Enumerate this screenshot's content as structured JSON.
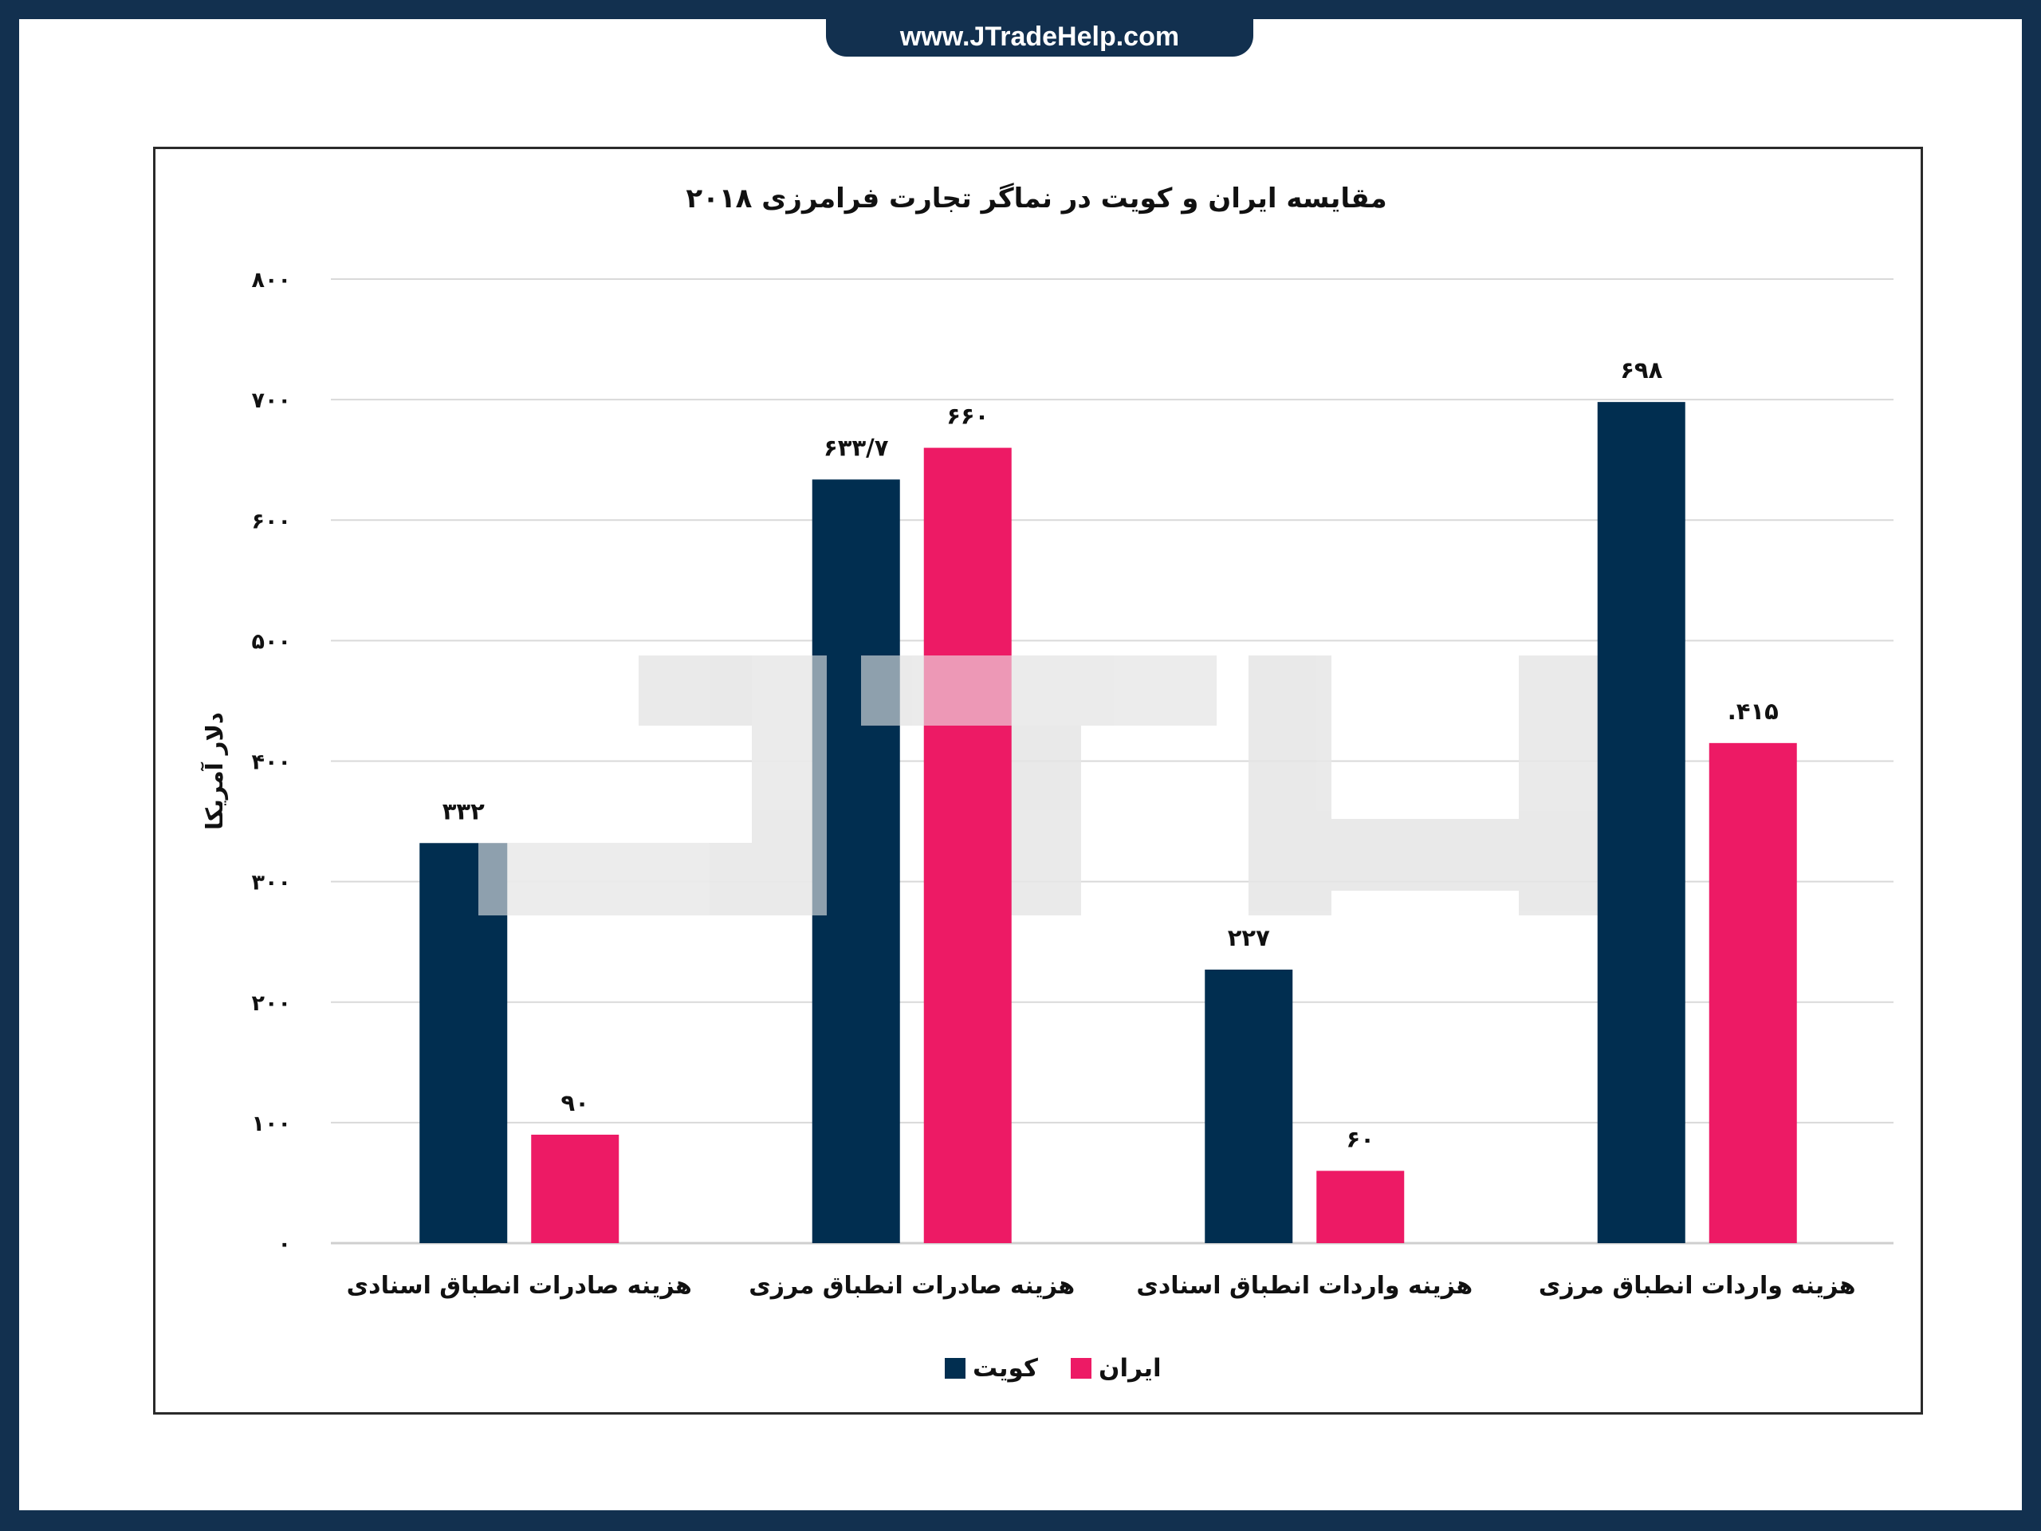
{
  "site_url": "www.JTradeHelp.com",
  "watermark": "JTH",
  "colors": {
    "kuwait": "#012e50",
    "iran": "#ed1a65",
    "frame": "#12304f",
    "grid": "#d9d9d9"
  },
  "chart_data": {
    "type": "bar",
    "title": "مقایسه ایران و کویت در نماگر تجارت فرامرزی ۲۰۱۸",
    "ylabel": "دلار آمریکا",
    "xlabel": "",
    "ylim": [
      0,
      800
    ],
    "yticks": [
      0,
      100,
      200,
      300,
      400,
      500,
      600,
      700,
      800
    ],
    "ytick_labels": [
      "۰",
      "۱۰۰",
      "۲۰۰",
      "۳۰۰",
      "۴۰۰",
      "۵۰۰",
      "۶۰۰",
      "۷۰۰",
      "۸۰۰"
    ],
    "grid": true,
    "legend_position": "bottom",
    "categories": [
      "هزینه صادرات انطباق اسنادی",
      "هزینه صادرات انطباق مرزی",
      "هزینه واردات انطباق اسنادی",
      "هزینه واردات انطباق مرزی"
    ],
    "series": [
      {
        "name": "کویت",
        "color": "#012e50",
        "values": [
          332,
          633.7,
          227,
          698
        ],
        "labels": [
          "۳۳۲",
          "۶۳۳/۷",
          "۲۲۷",
          "۶۹۸"
        ]
      },
      {
        "name": "ایران",
        "color": "#ed1a65",
        "values": [
          90,
          660,
          60,
          415
        ],
        "labels": [
          "۹۰",
          "۶۶۰",
          "۶۰",
          ".۴۱۵"
        ]
      }
    ]
  }
}
